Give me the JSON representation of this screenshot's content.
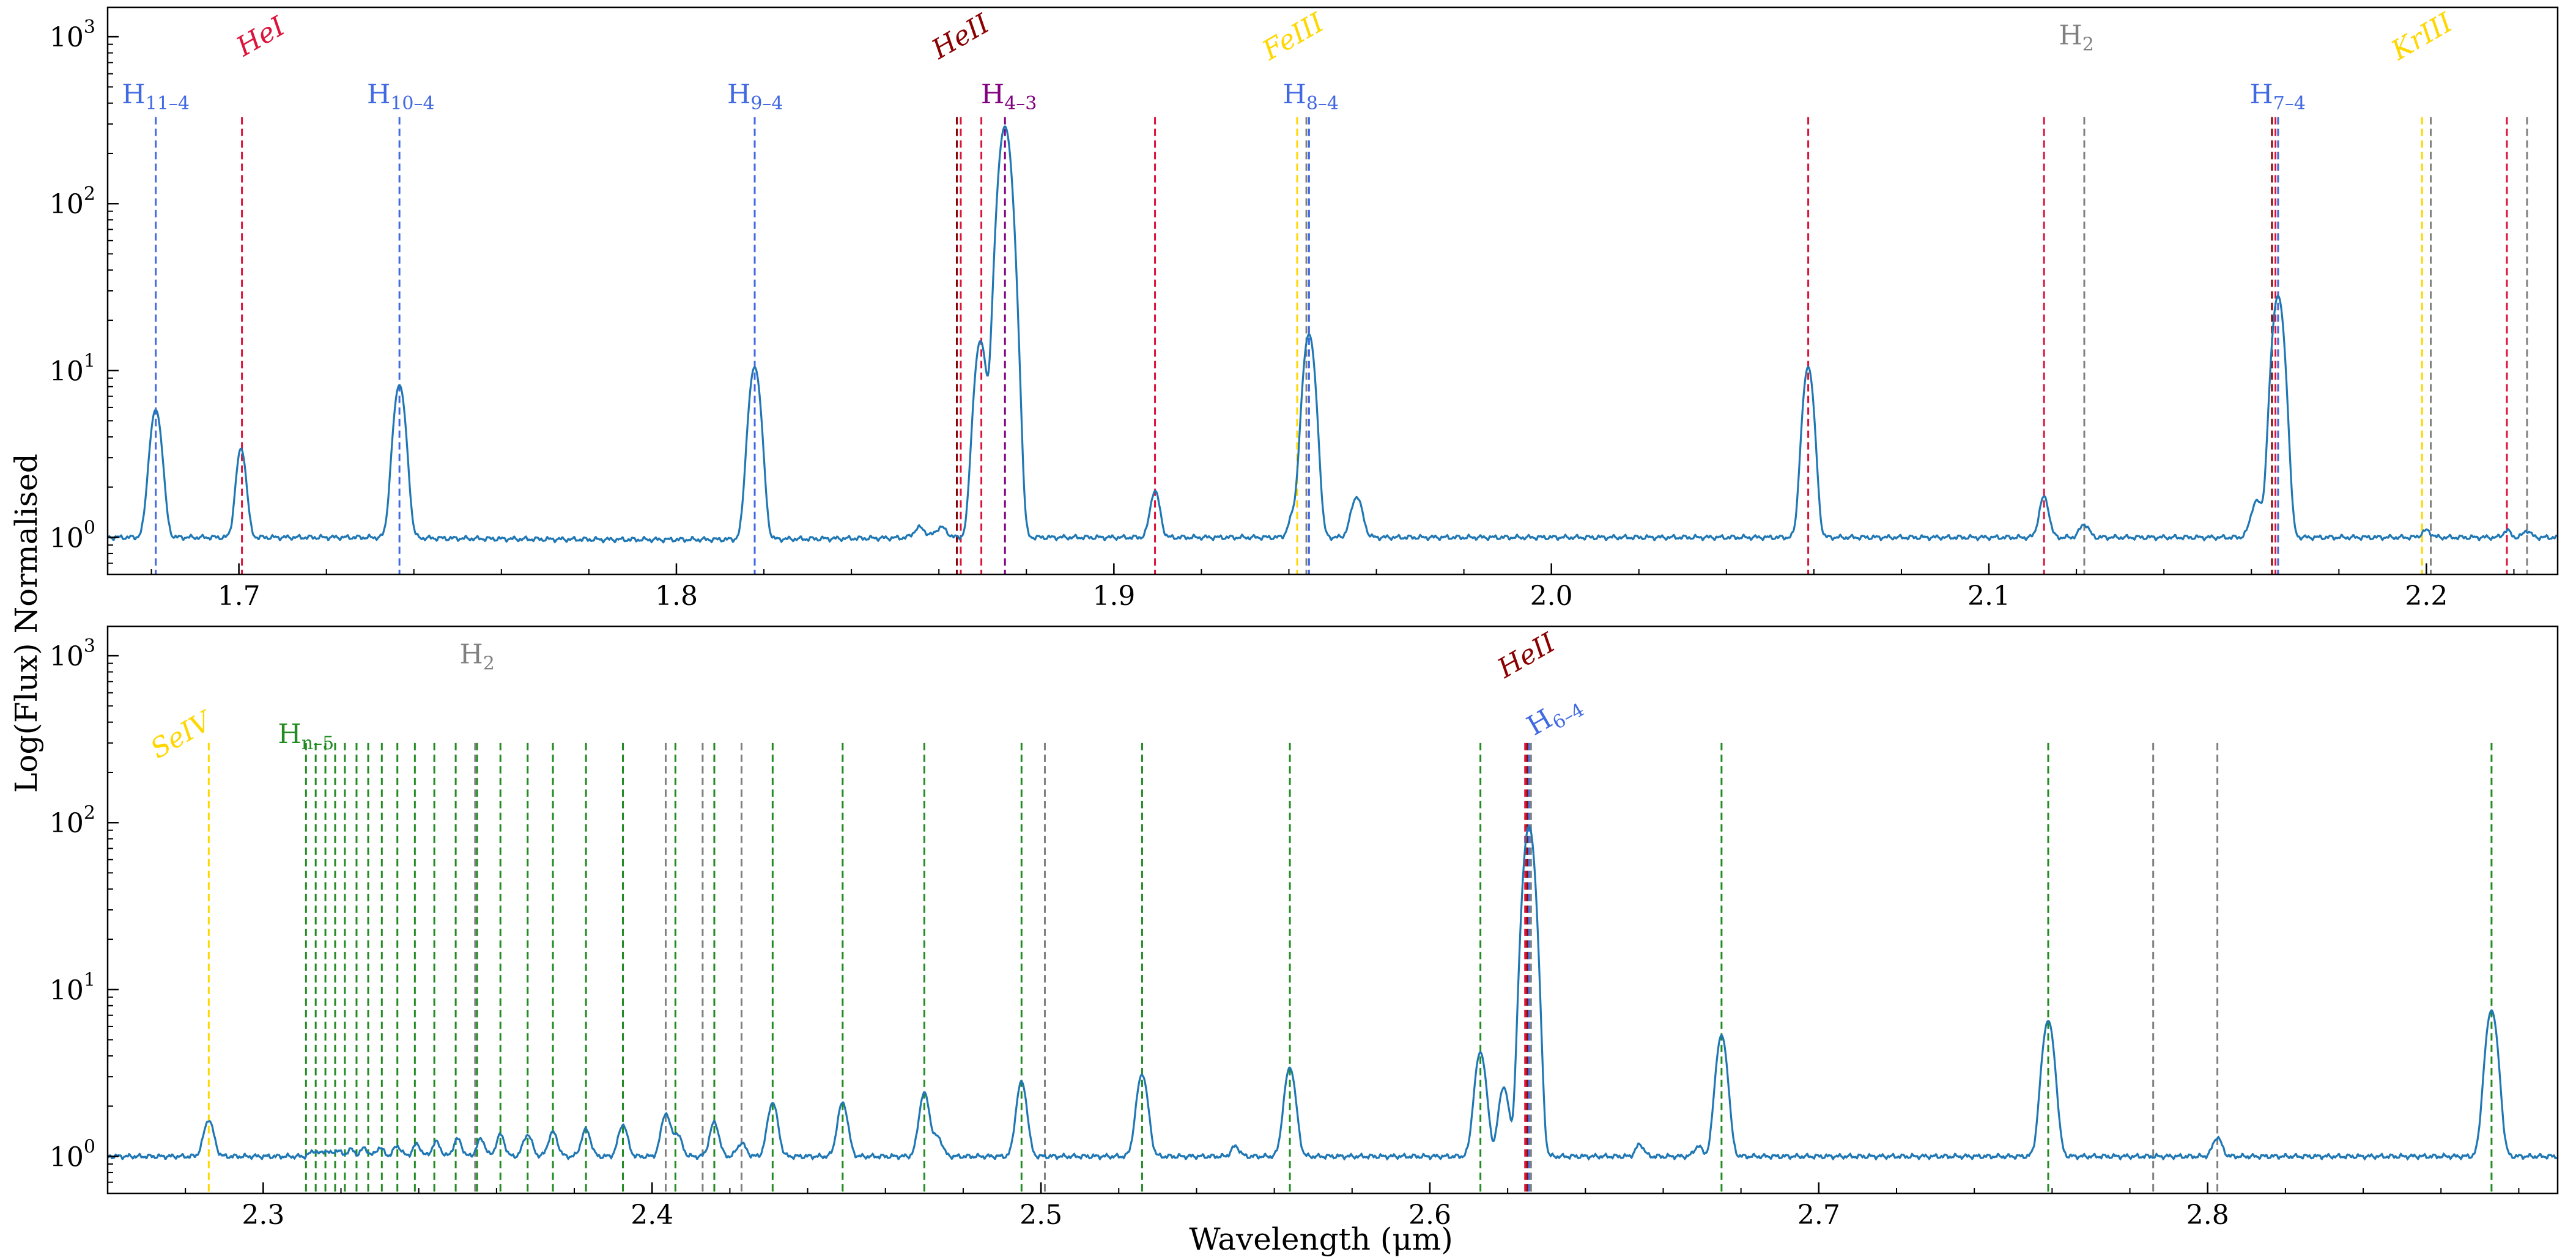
{
  "figure": {
    "ylabel": "Log(Flux) Normalised",
    "xlabel": "Wavelength (μm)"
  },
  "colors": {
    "spectrum": "#1f77b4",
    "H": "#4169e1",
    "HeI": "#dc143c",
    "HeII": "#8b0000",
    "FeIII": "#ffd700",
    "KrIII": "#ffd700",
    "SeIV": "#ffd700",
    "H2": "#808080",
    "Hn5": "#228b22",
    "H4_3": "#800080"
  },
  "chart_data": [
    {
      "type": "line",
      "panel": "top",
      "title": "",
      "xlabel": "",
      "ylabel": "Log(Flux) Normalised",
      "yscale": "log",
      "xlim": [
        1.67,
        2.23
      ],
      "ylim": [
        0.6,
        1500
      ],
      "xticks": [
        1.7,
        1.8,
        1.9,
        2.0,
        2.1,
        2.2
      ],
      "xtick_labels": [
        "1.7",
        "1.8",
        "1.9",
        "2.0",
        "2.1",
        "2.2"
      ],
      "yticks": [
        1,
        10,
        100,
        1000
      ],
      "ytick_labels": [
        "10",
        "10",
        "10",
        "10"
      ],
      "ytick_exponents": [
        "0",
        "1",
        "2",
        "3"
      ],
      "baseline": 1.0,
      "peaks": [
        {
          "x": 1.681,
          "y": 5.8,
          "w": 0.0012
        },
        {
          "x": 1.7005,
          "y": 3.4,
          "w": 0.001
        },
        {
          "x": 1.7367,
          "y": 8.2,
          "w": 0.0012
        },
        {
          "x": 1.8179,
          "y": 10.5,
          "w": 0.0012
        },
        {
          "x": 1.8556,
          "y": 1.15,
          "w": 0.0012
        },
        {
          "x": 1.8605,
          "y": 1.15,
          "w": 0.0012
        },
        {
          "x": 1.8695,
          "y": 15.0,
          "w": 0.0012
        },
        {
          "x": 1.8751,
          "y": 290.0,
          "w": 0.0013
        },
        {
          "x": 1.9094,
          "y": 1.9,
          "w": 0.001
        },
        {
          "x": 1.9446,
          "y": 16.5,
          "w": 0.0012
        },
        {
          "x": 1.941,
          "y": 1.35,
          "w": 0.001
        },
        {
          "x": 1.9555,
          "y": 1.75,
          "w": 0.0012
        },
        {
          "x": 2.0587,
          "y": 10.5,
          "w": 0.0011
        },
        {
          "x": 2.1126,
          "y": 1.75,
          "w": 0.001
        },
        {
          "x": 2.1218,
          "y": 1.2,
          "w": 0.001
        },
        {
          "x": 2.1612,
          "y": 1.65,
          "w": 0.0012
        },
        {
          "x": 2.1661,
          "y": 28.0,
          "w": 0.0012
        },
        {
          "x": 2.2,
          "y": 1.1,
          "w": 0.001
        },
        {
          "x": 2.2184,
          "y": 1.1,
          "w": 0.0008
        },
        {
          "x": 2.223,
          "y": 1.1,
          "w": 0.0008
        }
      ],
      "lines": [
        {
          "x": 1.681,
          "species": "H"
        },
        {
          "x": 1.7007,
          "species": "HeI"
        },
        {
          "x": 1.7367,
          "species": "H"
        },
        {
          "x": 1.8179,
          "species": "H"
        },
        {
          "x": 1.8641,
          "species": "HeII"
        },
        {
          "x": 1.865,
          "species": "HeI"
        },
        {
          "x": 1.8697,
          "species": "HeI"
        },
        {
          "x": 1.8751,
          "species": "H4_3"
        },
        {
          "x": 1.9094,
          "species": "HeI"
        },
        {
          "x": 1.9419,
          "species": "FeIII"
        },
        {
          "x": 1.944,
          "species": "H2"
        },
        {
          "x": 1.9446,
          "species": "H"
        },
        {
          "x": 2.0587,
          "species": "HeI"
        },
        {
          "x": 2.1126,
          "species": "HeI"
        },
        {
          "x": 2.1218,
          "species": "H2"
        },
        {
          "x": 2.1647,
          "species": "HeII"
        },
        {
          "x": 2.1655,
          "species": "HeI"
        },
        {
          "x": 2.1661,
          "species": "H"
        },
        {
          "x": 2.199,
          "species": "KrIII"
        },
        {
          "x": 2.201,
          "species": "H2"
        },
        {
          "x": 2.2184,
          "species": "HeI"
        },
        {
          "x": 2.223,
          "species": "H2"
        }
      ],
      "annotations": [
        {
          "x": 1.681,
          "y": 400,
          "text": "H",
          "sub": "11–4",
          "species": "H",
          "italic": false,
          "rotate": 0
        },
        {
          "x": 1.706,
          "y": 900,
          "text": "HeI",
          "sub": "",
          "species": "HeI",
          "italic": true,
          "rotate": -30
        },
        {
          "x": 1.737,
          "y": 400,
          "text": "H",
          "sub": "10–4",
          "species": "H",
          "italic": false,
          "rotate": 0
        },
        {
          "x": 1.818,
          "y": 400,
          "text": "H",
          "sub": "9–4",
          "species": "H",
          "italic": false,
          "rotate": 0
        },
        {
          "x": 1.866,
          "y": 900,
          "text": "HeII",
          "sub": "",
          "species": "HeII",
          "italic": true,
          "rotate": -30
        },
        {
          "x": 1.876,
          "y": 400,
          "text": "H",
          "sub": "4–3",
          "species": "H4_3",
          "italic": false,
          "rotate": 0
        },
        {
          "x": 1.942,
          "y": 900,
          "text": "FeIII",
          "sub": "",
          "species": "FeIII",
          "italic": true,
          "rotate": -30
        },
        {
          "x": 1.945,
          "y": 400,
          "text": "H",
          "sub": "8–4",
          "species": "H",
          "italic": false,
          "rotate": 0
        },
        {
          "x": 2.12,
          "y": 900,
          "text": "H",
          "sub": "2",
          "species": "H2",
          "italic": false,
          "rotate": 0
        },
        {
          "x": 2.166,
          "y": 400,
          "text": "H",
          "sub": "7–4",
          "species": "H",
          "italic": false,
          "rotate": 0
        },
        {
          "x": 2.2,
          "y": 900,
          "text": "KrIII",
          "sub": "",
          "species": "KrIII",
          "italic": true,
          "rotate": -30
        }
      ]
    },
    {
      "type": "line",
      "panel": "bottom",
      "title": "",
      "xlabel": "Wavelength (μm)",
      "ylabel": "",
      "yscale": "log",
      "xlim": [
        2.26,
        2.89
      ],
      "ylim": [
        0.6,
        1500
      ],
      "xticks": [
        2.3,
        2.4,
        2.5,
        2.6,
        2.7,
        2.8
      ],
      "xtick_labels": [
        "2.3",
        "2.4",
        "2.5",
        "2.6",
        "2.7",
        "2.8"
      ],
      "yticks": [
        1,
        10,
        100,
        1000
      ],
      "ytick_labels": [
        "10",
        "10",
        "10",
        "10"
      ],
      "ytick_exponents": [
        "0",
        "1",
        "2",
        "3"
      ],
      "baseline": 1.0,
      "peaks": [
        {
          "x": 2.286,
          "y": 1.65,
          "w": 0.0012
        },
        {
          "x": 2.313,
          "y": 1.08,
          "w": 0.0009
        },
        {
          "x": 2.316,
          "y": 1.08,
          "w": 0.0009
        },
        {
          "x": 2.319,
          "y": 1.09,
          "w": 0.0009
        },
        {
          "x": 2.3225,
          "y": 1.1,
          "w": 0.0009
        },
        {
          "x": 2.326,
          "y": 1.12,
          "w": 0.0009
        },
        {
          "x": 2.33,
          "y": 1.13,
          "w": 0.0009
        },
        {
          "x": 2.3345,
          "y": 1.15,
          "w": 0.001
        },
        {
          "x": 2.3395,
          "y": 1.18,
          "w": 0.001
        },
        {
          "x": 2.3445,
          "y": 1.22,
          "w": 0.001
        },
        {
          "x": 2.35,
          "y": 1.27,
          "w": 0.001
        },
        {
          "x": 2.356,
          "y": 1.27,
          "w": 0.001
        },
        {
          "x": 2.361,
          "y": 1.35,
          "w": 0.001
        },
        {
          "x": 2.368,
          "y": 1.35,
          "w": 0.0011
        },
        {
          "x": 2.3745,
          "y": 1.4,
          "w": 0.0011
        },
        {
          "x": 2.383,
          "y": 1.45,
          "w": 0.0011
        },
        {
          "x": 2.3925,
          "y": 1.55,
          "w": 0.0011
        },
        {
          "x": 2.4035,
          "y": 1.8,
          "w": 0.0011
        },
        {
          "x": 2.4065,
          "y": 1.35,
          "w": 0.0011
        },
        {
          "x": 2.416,
          "y": 1.6,
          "w": 0.0011
        },
        {
          "x": 2.423,
          "y": 1.2,
          "w": 0.0011
        },
        {
          "x": 2.431,
          "y": 2.1,
          "w": 0.0012
        },
        {
          "x": 2.449,
          "y": 2.1,
          "w": 0.0012
        },
        {
          "x": 2.47,
          "y": 2.4,
          "w": 0.0012
        },
        {
          "x": 2.4735,
          "y": 1.3,
          "w": 0.0011
        },
        {
          "x": 2.495,
          "y": 2.8,
          "w": 0.0012
        },
        {
          "x": 2.526,
          "y": 3.1,
          "w": 0.0013
        },
        {
          "x": 2.55,
          "y": 1.15,
          "w": 0.001
        },
        {
          "x": 2.564,
          "y": 3.4,
          "w": 0.0013
        },
        {
          "x": 2.613,
          "y": 4.2,
          "w": 0.0013
        },
        {
          "x": 2.619,
          "y": 2.6,
          "w": 0.0012
        },
        {
          "x": 2.6255,
          "y": 95.0,
          "w": 0.0013
        },
        {
          "x": 2.654,
          "y": 1.18,
          "w": 0.001
        },
        {
          "x": 2.669,
          "y": 1.15,
          "w": 0.001
        },
        {
          "x": 2.675,
          "y": 5.3,
          "w": 0.0013
        },
        {
          "x": 2.759,
          "y": 6.5,
          "w": 0.0014
        },
        {
          "x": 2.8025,
          "y": 1.3,
          "w": 0.0011
        },
        {
          "x": 2.873,
          "y": 7.5,
          "w": 0.0014
        }
      ],
      "lines": [
        {
          "x": 2.286,
          "species": "SeIV"
        },
        {
          "x": 2.311,
          "species": "Hn5"
        },
        {
          "x": 2.3135,
          "species": "Hn5"
        },
        {
          "x": 2.316,
          "species": "Hn5"
        },
        {
          "x": 2.3185,
          "species": "Hn5"
        },
        {
          "x": 2.321,
          "species": "Hn5"
        },
        {
          "x": 2.324,
          "species": "Hn5"
        },
        {
          "x": 2.327,
          "species": "Hn5"
        },
        {
          "x": 2.3305,
          "species": "Hn5"
        },
        {
          "x": 2.3345,
          "species": "Hn5"
        },
        {
          "x": 2.339,
          "species": "Hn5"
        },
        {
          "x": 2.344,
          "species": "Hn5"
        },
        {
          "x": 2.3495,
          "species": "Hn5"
        },
        {
          "x": 2.3545,
          "species": "H2"
        },
        {
          "x": 2.355,
          "species": "Hn5"
        },
        {
          "x": 2.361,
          "species": "Hn5"
        },
        {
          "x": 2.368,
          "species": "Hn5"
        },
        {
          "x": 2.3745,
          "species": "Hn5"
        },
        {
          "x": 2.383,
          "species": "Hn5"
        },
        {
          "x": 2.3925,
          "species": "Hn5"
        },
        {
          "x": 2.4035,
          "species": "H2"
        },
        {
          "x": 2.406,
          "species": "Hn5"
        },
        {
          "x": 2.413,
          "species": "H2"
        },
        {
          "x": 2.416,
          "species": "Hn5"
        },
        {
          "x": 2.423,
          "species": "H2"
        },
        {
          "x": 2.431,
          "species": "Hn5"
        },
        {
          "x": 2.449,
          "species": "Hn5"
        },
        {
          "x": 2.47,
          "species": "Hn5"
        },
        {
          "x": 2.495,
          "species": "Hn5"
        },
        {
          "x": 2.501,
          "species": "H2"
        },
        {
          "x": 2.526,
          "species": "Hn5"
        },
        {
          "x": 2.564,
          "species": "Hn5"
        },
        {
          "x": 2.613,
          "species": "Hn5"
        },
        {
          "x": 2.6245,
          "species": "HeI"
        },
        {
          "x": 2.625,
          "species": "HeII"
        },
        {
          "x": 2.6255,
          "species": "H"
        },
        {
          "x": 2.626,
          "species": "H2"
        },
        {
          "x": 2.675,
          "species": "Hn5"
        },
        {
          "x": 2.759,
          "species": "Hn5"
        },
        {
          "x": 2.786,
          "species": "H2"
        },
        {
          "x": 2.8025,
          "species": "H2"
        },
        {
          "x": 2.873,
          "species": "Hn5"
        }
      ],
      "annotations": [
        {
          "x": 2.28,
          "y": 300,
          "text": "SeIV",
          "sub": "",
          "species": "SeIV",
          "italic": true,
          "rotate": -30
        },
        {
          "x": 2.311,
          "y": 300,
          "text": "H",
          "sub": "n–5",
          "species": "Hn5",
          "italic": false,
          "rotate": 0
        },
        {
          "x": 2.355,
          "y": 900,
          "text": "H",
          "sub": "2",
          "species": "H2",
          "italic": false,
          "rotate": 0
        },
        {
          "x": 2.626,
          "y": 900,
          "text": "HeII",
          "sub": "",
          "species": "HeII",
          "italic": true,
          "rotate": -30
        },
        {
          "x": 2.633,
          "y": 400,
          "text": "H",
          "sub": "6–4",
          "species": "H",
          "italic": false,
          "rotate": -30
        }
      ]
    }
  ]
}
